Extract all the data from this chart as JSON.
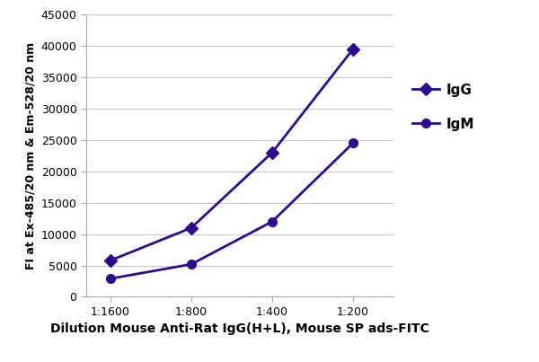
{
  "x_labels": [
    "1:1600",
    "1:800",
    "1:400",
    "1:200"
  ],
  "x_positions": [
    0,
    1,
    2,
    3
  ],
  "IgG_values": [
    5800,
    11000,
    23000,
    39500
  ],
  "IgM_values": [
    2900,
    5200,
    12000,
    24500
  ],
  "line_color": "#2d0b8c",
  "ylim": [
    0,
    45000
  ],
  "yticks": [
    0,
    5000,
    10000,
    15000,
    20000,
    25000,
    30000,
    35000,
    40000,
    45000
  ],
  "ylabel": "FI at Ex-485/20 nm & Em-528/20 nm",
  "xlabel": "Dilution Mouse Anti-Rat IgG(H+L), Mouse SP ads-FITC",
  "legend_IgG": "IgG",
  "legend_IgM": "IgM",
  "background_color": "#ffffff",
  "grid_color": "#c8c8c8"
}
